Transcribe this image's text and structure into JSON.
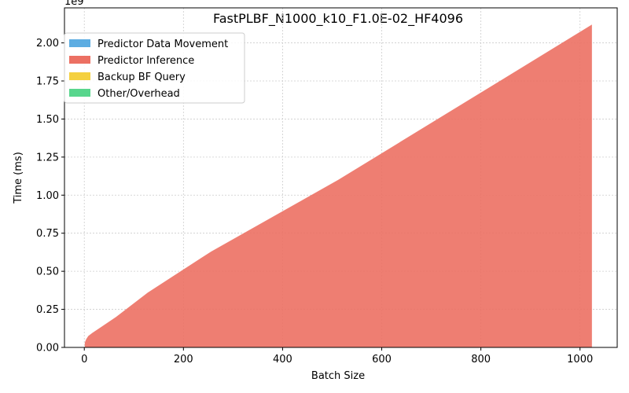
{
  "chart_data": {
    "type": "area",
    "stacked": true,
    "title": "FastPLBF_N1000_k10_F1.0E-02_HF4096",
    "xlabel": "Batch Size",
    "ylabel": "Time (ms)",
    "y_offset_label": "1e9",
    "xlim": [
      -40,
      1075
    ],
    "ylim": [
      0,
      2.23
    ],
    "y_scale_note": "y values in units of 1e9 ms",
    "x_ticks": [
      0,
      200,
      400,
      600,
      800,
      1000
    ],
    "x_tick_labels": [
      "0",
      "200",
      "400",
      "600",
      "800",
      "1000"
    ],
    "y_ticks": [
      0,
      0.25,
      0.5,
      0.75,
      1.0,
      1.25,
      1.5,
      1.75,
      2.0
    ],
    "y_tick_labels": [
      "0.00",
      "0.25",
      "0.50",
      "0.75",
      "1.00",
      "1.25",
      "1.50",
      "1.75",
      "2.00"
    ],
    "grid": true,
    "legend_position": "top-left",
    "x": [
      1,
      2,
      4,
      8,
      16,
      32,
      64,
      128,
      256,
      512,
      1024
    ],
    "series": [
      {
        "name": "Predictor Data Movement",
        "color": "#5dade2",
        "values": [
          0,
          0,
          0,
          0,
          0,
          0,
          0,
          0,
          0,
          0,
          0
        ]
      },
      {
        "name": "Predictor Inference",
        "color": "#ec7063",
        "values": [
          0.03,
          0.04,
          0.055,
          0.075,
          0.095,
          0.13,
          0.2,
          0.36,
          0.63,
          1.1,
          2.12
        ]
      },
      {
        "name": "Backup BF Query",
        "color": "#f4d03f",
        "values": [
          0,
          0,
          0,
          0,
          0,
          0,
          0,
          0,
          0,
          0,
          0
        ]
      },
      {
        "name": "Other/Overhead",
        "color": "#58d68d",
        "values": [
          0,
          0,
          0,
          0,
          0,
          0,
          0,
          0,
          0,
          0,
          0
        ]
      }
    ]
  }
}
